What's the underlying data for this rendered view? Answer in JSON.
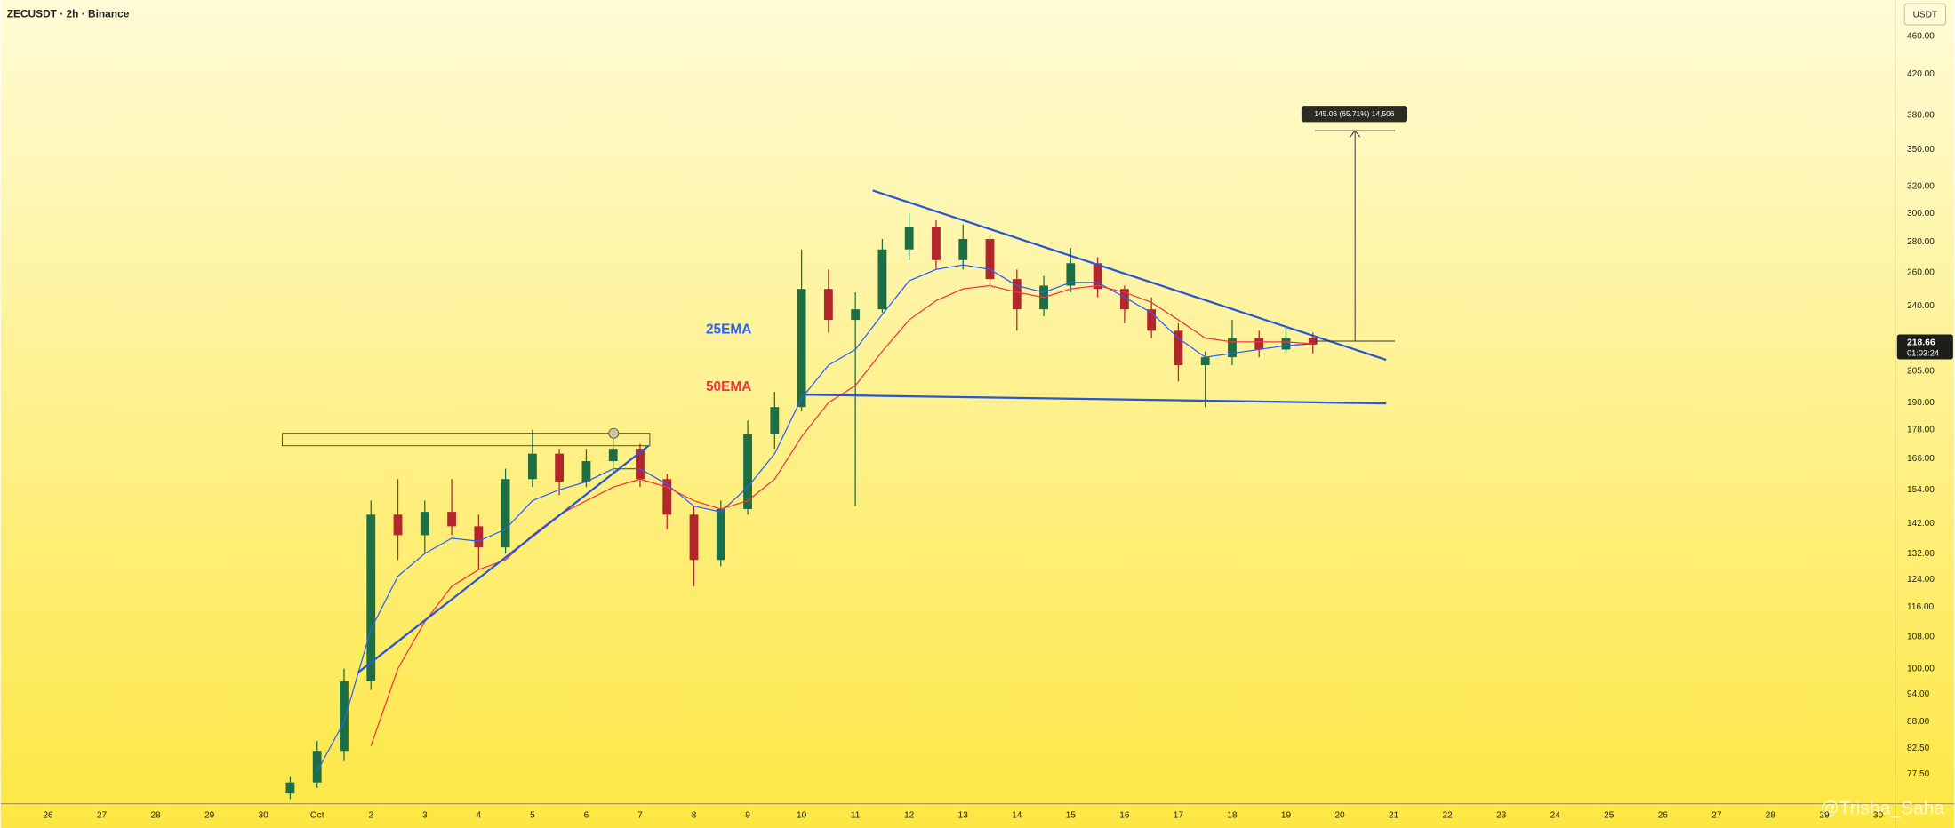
{
  "header": {
    "title": "ZECUSDT · 2h · Binance",
    "currency": "USDT"
  },
  "chart_data": {
    "type": "candlestick",
    "x_labels": [
      "26",
      "27",
      "28",
      "29",
      "30",
      "Oct",
      "2",
      "3",
      "4",
      "5",
      "6",
      "7",
      "8",
      "9",
      "10",
      "11",
      "12",
      "13",
      "14",
      "15",
      "16",
      "17",
      "18",
      "19",
      "20",
      "21",
      "22",
      "23",
      "24",
      "25",
      "26",
      "27",
      "28",
      "29",
      "30"
    ],
    "open": [
      74,
      76,
      82,
      97,
      145,
      138,
      146,
      141,
      134,
      158,
      168,
      157,
      165,
      170,
      158,
      145,
      130,
      147,
      176,
      188,
      250,
      232,
      238,
      275,
      290,
      268,
      282,
      256,
      238,
      252,
      266,
      250,
      238,
      226,
      208,
      212,
      222,
      216,
      222
    ],
    "high": [
      77,
      84,
      100,
      150,
      158,
      150,
      158,
      145,
      162,
      178,
      170,
      170,
      178,
      172,
      160,
      148,
      150,
      182,
      195,
      275,
      262,
      248,
      282,
      300,
      295,
      292,
      285,
      262,
      258,
      276,
      270,
      252,
      245,
      230,
      215,
      232,
      226,
      228,
      225
    ],
    "low": [
      73,
      75,
      80,
      95,
      130,
      132,
      138,
      127,
      132,
      155,
      152,
      155,
      160,
      155,
      140,
      122,
      128,
      145,
      170,
      186,
      225,
      148,
      236,
      268,
      262,
      262,
      250,
      226,
      234,
      248,
      245,
      230,
      222,
      200,
      188,
      208,
      212,
      214,
      214
    ],
    "close": [
      76,
      82,
      97,
      145,
      138,
      146,
      141,
      134,
      158,
      168,
      157,
      165,
      170,
      158,
      145,
      130,
      147,
      176,
      188,
      250,
      232,
      238,
      275,
      290,
      268,
      282,
      256,
      238,
      252,
      266,
      250,
      238,
      226,
      208,
      212,
      222,
      216,
      222,
      218.66
    ],
    "up_color": "#1d6e45",
    "down_color": "#b3262b",
    "series": [
      {
        "name": "25EMA",
        "color": "#2962ff",
        "values": [
          null,
          78,
          88,
          110,
          125,
          132,
          137,
          136,
          140,
          150,
          154,
          157,
          162,
          162,
          156,
          148,
          146,
          155,
          168,
          192,
          208,
          216,
          235,
          255,
          262,
          265,
          262,
          252,
          248,
          254,
          254,
          245,
          236,
          222,
          212,
          214,
          216,
          218,
          219
        ]
      },
      {
        "name": "50EMA",
        "color": "#f23645",
        "values": [
          null,
          null,
          null,
          83,
          100,
          112,
          122,
          127,
          130,
          138,
          145,
          150,
          155,
          158,
          155,
          150,
          147,
          150,
          158,
          175,
          190,
          198,
          215,
          232,
          243,
          250,
          252,
          248,
          245,
          250,
          252,
          248,
          242,
          232,
          222,
          220,
          220,
          220,
          219
        ]
      }
    ],
    "log_scale": true,
    "grid": false,
    "ylim": [
      72.3,
      502
    ],
    "yticks": [
      {
        "value": 460,
        "label": "460.00"
      },
      {
        "value": 420,
        "label": "420.00"
      },
      {
        "value": 380,
        "label": "380.00"
      },
      {
        "value": 350,
        "label": "350.00"
      },
      {
        "value": 320,
        "label": "320.00"
      },
      {
        "value": 300,
        "label": "300.00"
      },
      {
        "value": 280,
        "label": "280.00"
      },
      {
        "value": 260,
        "label": "260.00"
      },
      {
        "value": 240,
        "label": "240.00"
      },
      {
        "value": 205,
        "label": "205.00"
      },
      {
        "value": 190,
        "label": "190.00"
      },
      {
        "value": 178,
        "label": "178.00"
      },
      {
        "value": 166,
        "label": "166.00"
      },
      {
        "value": 154,
        "label": "154.00"
      },
      {
        "value": 142,
        "label": "142.00"
      },
      {
        "value": 132,
        "label": "132.00"
      },
      {
        "value": 124,
        "label": "124.00"
      },
      {
        "value": 116,
        "label": "116.00"
      },
      {
        "value": 108,
        "label": "108.00"
      },
      {
        "value": 100,
        "label": "100.00"
      },
      {
        "value": 94,
        "label": "94.00"
      },
      {
        "value": 88,
        "label": "88.00"
      },
      {
        "value": 82.5,
        "label": "82.50"
      },
      {
        "value": 77.5,
        "label": "77.50"
      }
    ],
    "last_price": 218.66,
    "countdown": "01:03:24",
    "measure_label": "145.06 (65.71%) 14,506"
  },
  "watermark": "@Trisha_Saha"
}
